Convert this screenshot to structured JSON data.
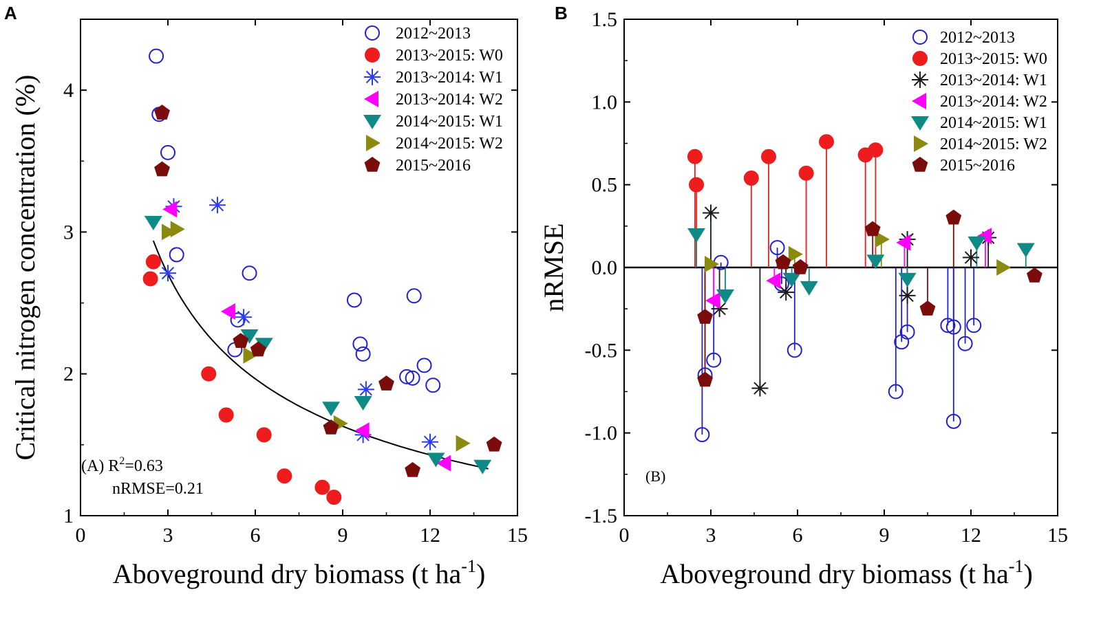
{
  "figure": {
    "panel_a_letter": "A",
    "panel_b_letter": "B"
  },
  "colors": {
    "y2012": "#1f1fd0",
    "w0": "#ee1c1c",
    "s1314w1": "#2a3bff",
    "s1314w1_b": "#1a1a1a",
    "s1314w2": "#ff00ff",
    "s1415w1": "#0f8a86",
    "s1415w2": "#8a8a10",
    "s1516": "#7a0c0c",
    "axis": "#000000"
  },
  "chart_data": [
    {
      "type": "scatter",
      "panel": "A",
      "xlabel": "Aboveground dry biomass (t ha",
      "xlabel_sup": "-1",
      "xlabel_end": ")",
      "ylabel": "Critical nitrogen concentration (%)",
      "xlim": [
        0,
        15
      ],
      "ylim": [
        1,
        4.5
      ],
      "xticks": [
        "0",
        "3",
        "6",
        "9",
        "12",
        "15"
      ],
      "yticks": [
        "1",
        "2",
        "3",
        "4"
      ],
      "annotation_prefix": "(A) R",
      "annotation_sup": "2",
      "annotation_r2": "=0.63",
      "annotation_nrmse": "nRMSE=0.21",
      "fit_curve": {
        "a": 4.48,
        "b": 0.46,
        "x_range": [
          2.5,
          14
        ]
      },
      "series": [
        {
          "name": "2012~2013",
          "marker": "circle-open",
          "color_key": "y2012",
          "points": [
            [
              2.6,
              4.24
            ],
            [
              2.7,
              3.83
            ],
            [
              3.0,
              3.56
            ],
            [
              3.3,
              2.84
            ],
            [
              5.8,
              2.71
            ],
            [
              5.4,
              2.38
            ],
            [
              5.3,
              2.17
            ],
            [
              9.4,
              2.52
            ],
            [
              9.6,
              2.21
            ],
            [
              9.7,
              2.14
            ],
            [
              11.2,
              1.98
            ],
            [
              11.4,
              1.97
            ],
            [
              11.8,
              2.06
            ],
            [
              12.1,
              1.92
            ],
            [
              11.45,
              2.55
            ]
          ]
        },
        {
          "name": "2013~2015: W0",
          "marker": "circle-filled",
          "color_key": "w0",
          "points": [
            [
              2.4,
              2.67
            ],
            [
              2.5,
              2.79
            ],
            [
              4.4,
              2.0
            ],
            [
              5.0,
              1.71
            ],
            [
              6.3,
              1.57
            ],
            [
              7.0,
              1.28
            ],
            [
              8.3,
              1.2
            ],
            [
              8.7,
              1.13
            ]
          ]
        },
        {
          "name": "2013~2014: W1",
          "marker": "asterisk",
          "color_key": "s1314w1",
          "points": [
            [
              3.0,
              2.71
            ],
            [
              3.2,
              3.18
            ],
            [
              4.7,
              3.19
            ],
            [
              5.6,
              2.4
            ],
            [
              9.7,
              1.57
            ],
            [
              9.8,
              1.89
            ],
            [
              12.0,
              1.52
            ]
          ]
        },
        {
          "name": "2013~2014: W2",
          "marker": "triangle-left",
          "color_key": "s1314w2",
          "points": [
            [
              3.1,
              3.16
            ],
            [
              5.1,
              2.44
            ],
            [
              9.7,
              1.6
            ],
            [
              12.5,
              1.37
            ]
          ]
        },
        {
          "name": "2014~2015: W1",
          "marker": "triangle-down",
          "color_key": "s1415w1",
          "points": [
            [
              2.5,
              3.07
            ],
            [
              5.8,
              2.27
            ],
            [
              6.3,
              2.21
            ],
            [
              8.6,
              1.76
            ],
            [
              9.7,
              1.8
            ],
            [
              12.2,
              1.4
            ],
            [
              13.8,
              1.35
            ]
          ]
        },
        {
          "name": "2014~2015: W2",
          "marker": "triangle-right",
          "color_key": "s1415w2",
          "points": [
            [
              3.0,
              3.0
            ],
            [
              3.3,
              3.02
            ],
            [
              5.8,
              2.13
            ],
            [
              8.9,
              1.65
            ],
            [
              13.1,
              1.51
            ]
          ]
        },
        {
          "name": "2015~2016",
          "marker": "pentagon",
          "color_key": "s1516",
          "points": [
            [
              2.8,
              3.84
            ],
            [
              2.8,
              3.44
            ],
            [
              5.5,
              2.23
            ],
            [
              6.1,
              2.17
            ],
            [
              8.6,
              1.62
            ],
            [
              10.5,
              1.93
            ],
            [
              11.4,
              1.32
            ],
            [
              14.2,
              1.5
            ]
          ]
        }
      ]
    },
    {
      "type": "scatter",
      "panel": "B",
      "xlabel": "Aboveground dry biomass (t ha",
      "xlabel_sup": "-1",
      "xlabel_end": ")",
      "ylabel": "nRMSE",
      "xlim": [
        0,
        15
      ],
      "ylim": [
        -1.5,
        1.5
      ],
      "xticks": [
        "0",
        "3",
        "6",
        "9",
        "12",
        "15"
      ],
      "yticks": [
        "-1.5",
        "-1.0",
        "-0.5",
        "0.0",
        "0.5",
        "1.0",
        "1.5"
      ],
      "annotation": "(B)",
      "stems_to": 0,
      "series": [
        {
          "name": "2012~2013",
          "marker": "circle-open",
          "color_key": "y2012",
          "points": [
            [
              2.7,
              -1.01
            ],
            [
              2.8,
              -0.65
            ],
            [
              3.1,
              -0.56
            ],
            [
              3.35,
              0.03
            ],
            [
              5.3,
              0.12
            ],
            [
              5.45,
              -0.1
            ],
            [
              5.9,
              -0.5
            ],
            [
              9.4,
              -0.75
            ],
            [
              9.6,
              -0.45
            ],
            [
              9.8,
              -0.39
            ],
            [
              11.2,
              -0.35
            ],
            [
              11.4,
              -0.93
            ],
            [
              11.4,
              -0.36
            ],
            [
              11.8,
              -0.46
            ],
            [
              12.1,
              -0.35
            ]
          ]
        },
        {
          "name": "2013~2015: W0",
          "marker": "circle-filled",
          "color_key": "w0",
          "points": [
            [
              2.45,
              0.67
            ],
            [
              2.5,
              0.5
            ],
            [
              4.4,
              0.54
            ],
            [
              5.0,
              0.67
            ],
            [
              6.3,
              0.57
            ],
            [
              7.0,
              0.76
            ],
            [
              8.35,
              0.68
            ],
            [
              8.7,
              0.71
            ]
          ]
        },
        {
          "name": "2013~2014: W1",
          "marker": "asterisk",
          "color_key": "s1314w1_b",
          "points": [
            [
              3.0,
              0.33
            ],
            [
              3.3,
              -0.25
            ],
            [
              4.7,
              -0.73
            ],
            [
              5.6,
              -0.15
            ],
            [
              9.8,
              0.17
            ],
            [
              9.8,
              -0.17
            ],
            [
              12.0,
              0.06
            ],
            [
              12.6,
              0.18
            ]
          ]
        },
        {
          "name": "2013~2014: W2",
          "marker": "triangle-left",
          "color_key": "s1314w2",
          "points": [
            [
              3.1,
              -0.2
            ],
            [
              5.2,
              -0.08
            ],
            [
              9.7,
              0.15
            ],
            [
              12.5,
              0.19
            ]
          ]
        },
        {
          "name": "2014~2015: W1",
          "marker": "triangle-down",
          "color_key": "s1415w1",
          "points": [
            [
              2.5,
              0.2
            ],
            [
              3.5,
              -0.17
            ],
            [
              5.8,
              -0.07
            ],
            [
              6.4,
              -0.12
            ],
            [
              8.7,
              0.04
            ],
            [
              9.8,
              -0.07
            ],
            [
              12.2,
              0.15
            ],
            [
              13.9,
              0.11
            ]
          ]
        },
        {
          "name": "2014~2015: W2",
          "marker": "triangle-right",
          "color_key": "s1415w2",
          "points": [
            [
              3.0,
              0.02
            ],
            [
              5.9,
              0.08
            ],
            [
              8.9,
              0.17
            ],
            [
              13.1,
              0.0
            ]
          ]
        },
        {
          "name": "2015~2016",
          "marker": "pentagon",
          "color_key": "s1516",
          "points": [
            [
              2.8,
              -0.68
            ],
            [
              2.8,
              -0.3
            ],
            [
              5.5,
              0.03
            ],
            [
              6.1,
              0.0
            ],
            [
              8.6,
              0.23
            ],
            [
              10.5,
              -0.25
            ],
            [
              11.4,
              0.3
            ],
            [
              14.2,
              -0.05
            ]
          ]
        }
      ]
    }
  ]
}
